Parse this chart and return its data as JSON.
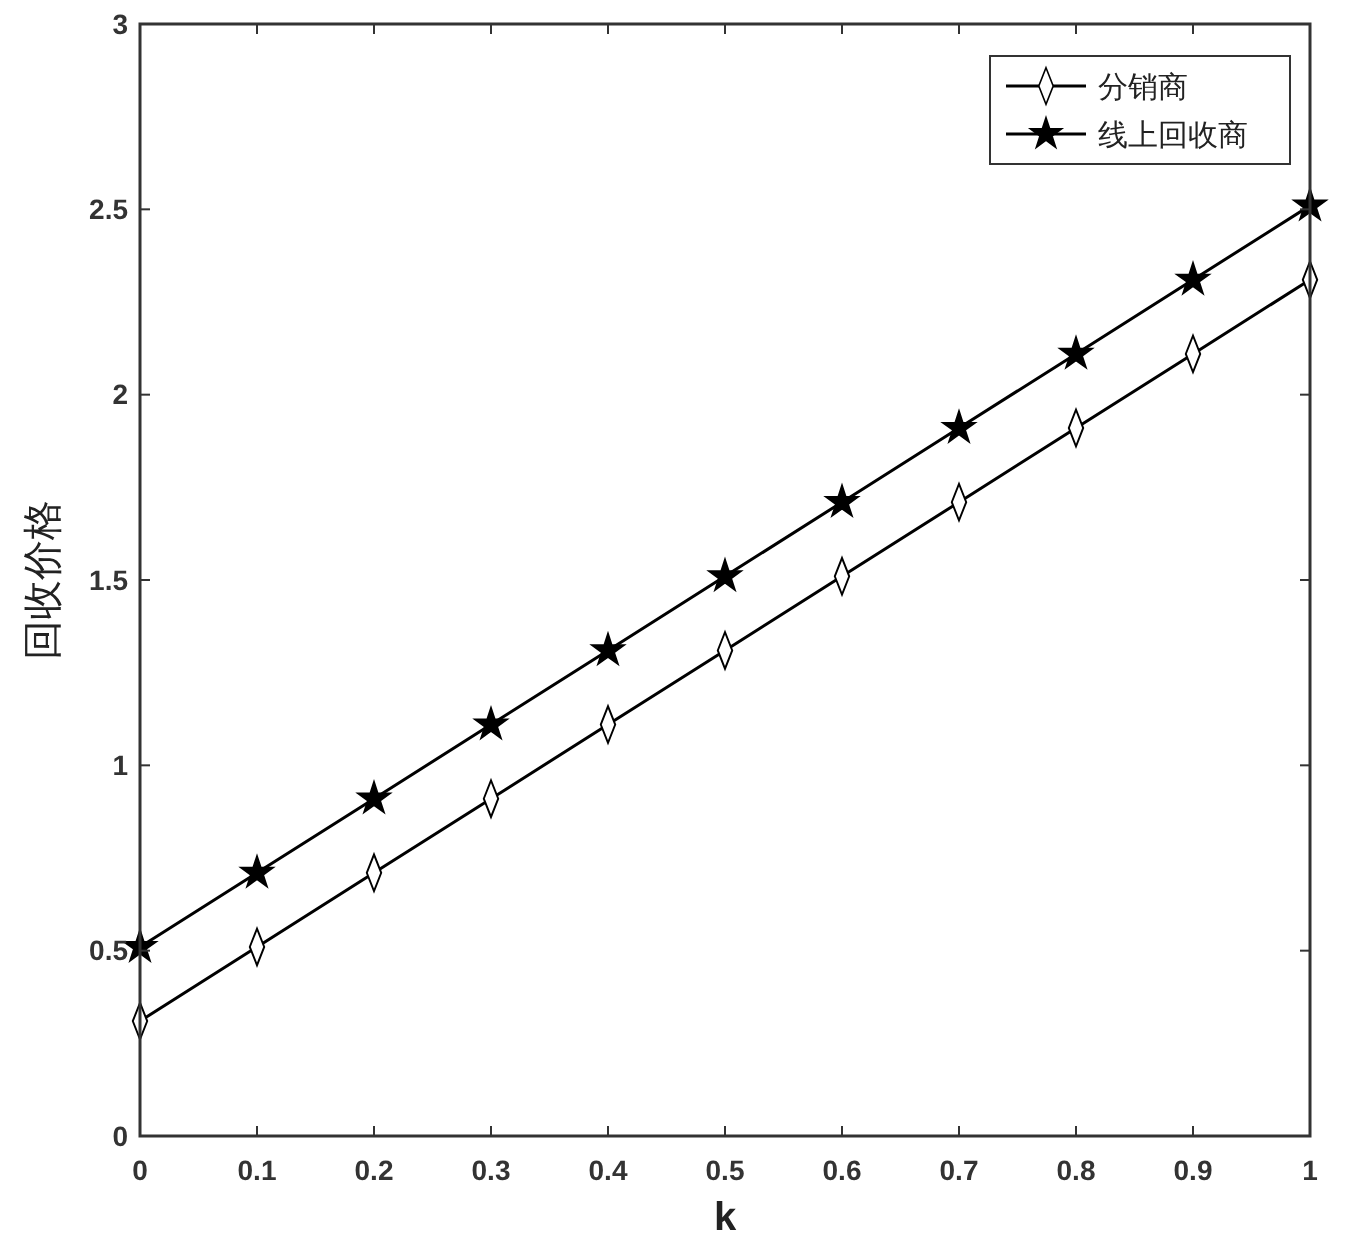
{
  "chart_data": {
    "type": "line",
    "xlabel": "k",
    "ylabel": "回收价格",
    "x": [
      0,
      0.1,
      0.2,
      0.3,
      0.4,
      0.5,
      0.6,
      0.7,
      0.8,
      0.9,
      1
    ],
    "series": [
      {
        "name": "分销商",
        "color": "#000000",
        "marker": "diamond",
        "values": [
          0.31,
          0.51,
          0.71,
          0.91,
          1.11,
          1.31,
          1.51,
          1.71,
          1.91,
          2.11,
          2.31
        ]
      },
      {
        "name": "线上回收商",
        "color": "#000000",
        "marker": "star",
        "values": [
          0.51,
          0.71,
          0.91,
          1.11,
          1.31,
          1.51,
          1.71,
          1.91,
          2.11,
          2.31,
          2.51
        ]
      }
    ],
    "xlim": [
      0,
      1
    ],
    "xticks": [
      0,
      0.1,
      0.2,
      0.3,
      0.4,
      0.5,
      0.6,
      0.7,
      0.8,
      0.9,
      1
    ],
    "ylim": [
      0,
      3
    ],
    "yticks": [
      0,
      0.5,
      1,
      1.5,
      2,
      2.5,
      3
    ],
    "grid": false,
    "legend": "top right",
    "line_style": "solid"
  }
}
